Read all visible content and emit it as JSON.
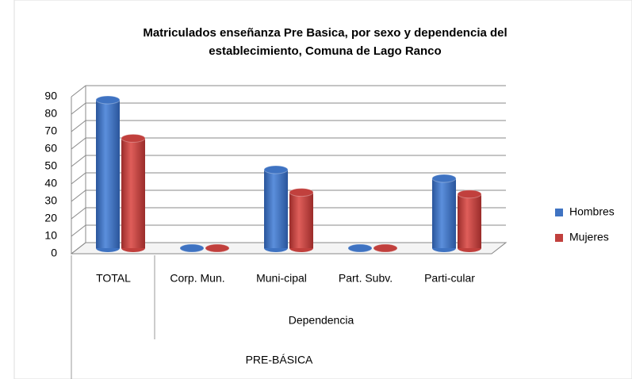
{
  "chart_data": {
    "type": "bar3d",
    "title": [
      "Matriculados enseñanza Pre Basica, por sexo y dependencia del",
      "establecimiento, Comuna de Lago Ranco"
    ],
    "categories": [
      "TOTAL",
      "Corp. Mun.",
      "Muni-cipal",
      "Part. Subv.",
      "Parti-cular"
    ],
    "group_labels": [
      "Dependencia",
      "PRE-BÁSICA"
    ],
    "series": [
      {
        "name": "Hombres",
        "color": "#3f73c2",
        "values": [
          85,
          0,
          45,
          0,
          40
        ]
      },
      {
        "name": "Mujeres",
        "color": "#c1403d",
        "values": [
          63,
          0,
          32,
          0,
          31
        ]
      }
    ],
    "ylim": [
      0,
      90
    ],
    "yticks": [
      0,
      10,
      20,
      30,
      40,
      50,
      60,
      70,
      80,
      90
    ],
    "grid": true,
    "legend": "right"
  }
}
